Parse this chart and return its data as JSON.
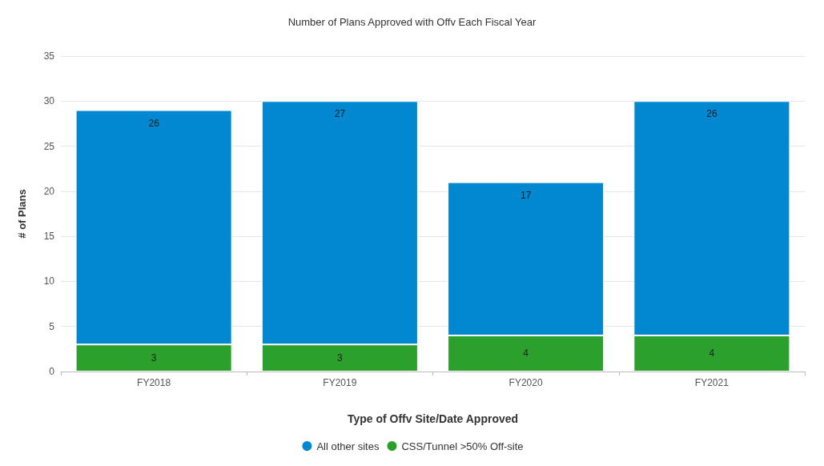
{
  "chart_data": {
    "type": "bar",
    "title": "Number of Plans Approved with Offv Each Fiscal Year",
    "xlabel": "Type of Offv Site/Date Approved",
    "ylabel": "# of Plans",
    "categories": [
      "FY2018",
      "FY2019",
      "FY2020",
      "FY2021"
    ],
    "stacked": true,
    "series": [
      {
        "name": "CSS/Tunnel >50% Off-site",
        "color": "#2ca02c",
        "values": [
          3,
          3,
          4,
          4
        ]
      },
      {
        "name": "All other sites",
        "color": "#0288d1",
        "values": [
          26,
          27,
          17,
          26
        ]
      }
    ],
    "ylim": [
      0,
      35
    ],
    "yticks": [
      0,
      5,
      10,
      15,
      20,
      25,
      30,
      35
    ],
    "grid": "y",
    "legend": "bottom",
    "data_labels": true
  }
}
